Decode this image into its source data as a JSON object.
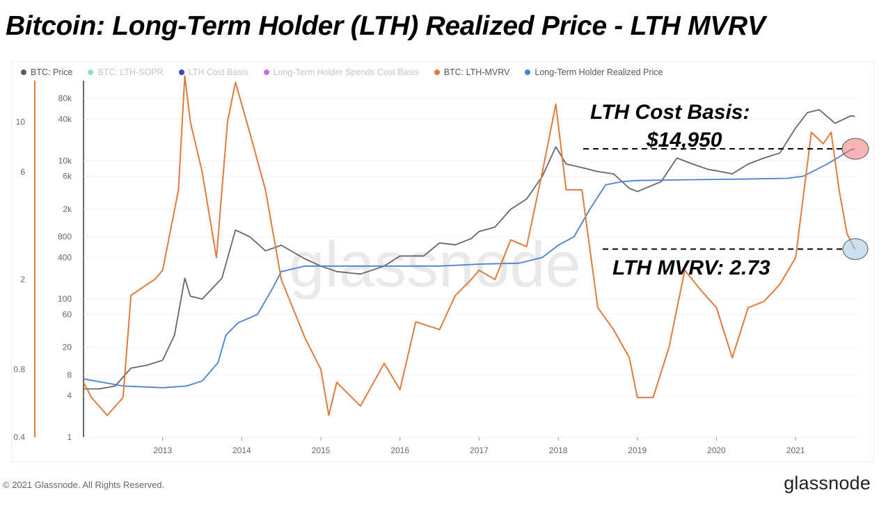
{
  "title": "Bitcoin: Long-Term Holder (LTH) Realized Price - LTH MVRV",
  "legend": [
    {
      "label": "BTC: Price",
      "color": "#5a5a5a",
      "faded": false
    },
    {
      "label": "BTC: LTH-SOPR",
      "color": "#8fdbd3",
      "faded": true
    },
    {
      "label": "LTH Cost Basis",
      "color": "#2e4fb8",
      "faded": true
    },
    {
      "label": "Long-Term Holder Spends Cost Basis",
      "color": "#c96ddc",
      "faded": true
    },
    {
      "label": "BTC: LTH-MVRV",
      "color": "#e07b3c",
      "faded": false
    },
    {
      "label": "Long-Term Holder Realized Price",
      "color": "#4a7fd6",
      "faded": false
    }
  ],
  "annotations": {
    "cost_basis_line1": "LTH Cost Basis:",
    "cost_basis_line2": "$14,950",
    "mvrv": "LTH MVRV: 2.73"
  },
  "watermark": "glassnode",
  "footer": "© 2021 Glassnode. All Rights Reserved.",
  "brand": "glassnode",
  "chart_data": {
    "type": "line",
    "x_ticks": [
      "2013",
      "2014",
      "2015",
      "2016",
      "2017",
      "2018",
      "2019",
      "2020",
      "2021"
    ],
    "y_left_price_ticks": [
      "1",
      "4",
      "8",
      "20",
      "60",
      "100",
      "400",
      "800",
      "2k",
      "6k",
      "10k",
      "40k",
      "80k"
    ],
    "y_left_price_scale": "log",
    "y_left_mvrv_ticks": [
      "0.4",
      "0.8",
      "2",
      "6",
      "10"
    ],
    "y_left_mvrv_scale": "log",
    "x_range": [
      2012.0,
      2021.8
    ],
    "price_range": [
      1,
      110000
    ],
    "mvrv_range": [
      0.4,
      14
    ],
    "series": [
      {
        "name": "BTC: Price",
        "color": "#666666",
        "x": [
          2012.0,
          2012.2,
          2012.4,
          2012.6,
          2012.8,
          2013.0,
          2013.15,
          2013.28,
          2013.35,
          2013.5,
          2013.75,
          2013.92,
          2014.1,
          2014.3,
          2014.5,
          2014.8,
          2015.0,
          2015.2,
          2015.5,
          2015.8,
          2016.0,
          2016.3,
          2016.5,
          2016.7,
          2016.9,
          2017.0,
          2017.2,
          2017.4,
          2017.6,
          2017.8,
          2017.97,
          2018.1,
          2018.3,
          2018.5,
          2018.7,
          2018.9,
          2019.0,
          2019.3,
          2019.5,
          2019.7,
          2019.9,
          2020.0,
          2020.2,
          2020.4,
          2020.6,
          2020.8,
          2021.0,
          2021.15,
          2021.3,
          2021.5,
          2021.7,
          2021.75
        ],
        "values": [
          5,
          5,
          5.5,
          10,
          11,
          13,
          30,
          200,
          110,
          100,
          200,
          1000,
          800,
          500,
          600,
          380,
          300,
          250,
          230,
          300,
          420,
          420,
          650,
          610,
          750,
          950,
          1100,
          2000,
          2800,
          6000,
          16000,
          9000,
          8000,
          7000,
          6500,
          4000,
          3600,
          5000,
          11000,
          9000,
          7500,
          7200,
          6500,
          9000,
          11000,
          13000,
          30000,
          50000,
          55000,
          35000,
          45000,
          44000
        ]
      },
      {
        "name": "Long-Term Holder Realized Price",
        "color": "#4a7fd6",
        "x": [
          2012.0,
          2012.5,
          2013.0,
          2013.3,
          2013.5,
          2013.7,
          2013.8,
          2013.95,
          2014.2,
          2014.4,
          2014.5,
          2014.8,
          2015.2,
          2015.6,
          2016.0,
          2016.5,
          2017.0,
          2017.5,
          2017.8,
          2018.0,
          2018.2,
          2018.4,
          2018.6,
          2018.8,
          2019.0,
          2019.5,
          2020.0,
          2020.5,
          2020.9,
          2021.1,
          2021.4,
          2021.7,
          2021.75
        ],
        "values": [
          7,
          5.5,
          5.2,
          5.5,
          6.5,
          12,
          30,
          45,
          60,
          150,
          250,
          300,
          300,
          300,
          300,
          300,
          320,
          330,
          400,
          600,
          800,
          2000,
          4500,
          5000,
          5200,
          5300,
          5400,
          5500,
          5600,
          6000,
          9000,
          14500,
          14950
        ]
      },
      {
        "name": "BTC: LTH-MVRV",
        "color": "#e07b3c",
        "x": [
          2012.0,
          2012.1,
          2012.3,
          2012.5,
          2012.6,
          2012.8,
          2012.9,
          2013.0,
          2013.2,
          2013.28,
          2013.35,
          2013.5,
          2013.68,
          2013.75,
          2013.82,
          2013.92,
          2014.1,
          2014.3,
          2014.5,
          2014.8,
          2015.0,
          2015.1,
          2015.2,
          2015.5,
          2015.8,
          2016.0,
          2016.2,
          2016.5,
          2016.7,
          2016.9,
          2017.0,
          2017.2,
          2017.4,
          2017.6,
          2017.8,
          2017.97,
          2018.1,
          2018.3,
          2018.5,
          2018.7,
          2018.9,
          2019.0,
          2019.2,
          2019.4,
          2019.6,
          2019.8,
          2020.0,
          2020.2,
          2020.4,
          2020.6,
          2020.8,
          2021.0,
          2021.2,
          2021.35,
          2021.45,
          2021.55,
          2021.65,
          2021.75
        ],
        "values": [
          0.7,
          0.6,
          0.5,
          0.6,
          1.7,
          1.9,
          2.0,
          2.2,
          5,
          16,
          10,
          6,
          2.5,
          5,
          10,
          15,
          9,
          5,
          2,
          1.1,
          0.8,
          0.5,
          0.7,
          0.55,
          0.85,
          0.65,
          1.3,
          1.2,
          1.7,
          2.0,
          2.2,
          2.0,
          3.0,
          2.8,
          6,
          12,
          5,
          5,
          1.5,
          1.2,
          0.9,
          0.6,
          0.6,
          1.0,
          2.2,
          1.8,
          1.5,
          0.9,
          1.5,
          1.6,
          1.9,
          2.5,
          9,
          8,
          9,
          5,
          3.2,
          2.73
        ]
      }
    ]
  }
}
